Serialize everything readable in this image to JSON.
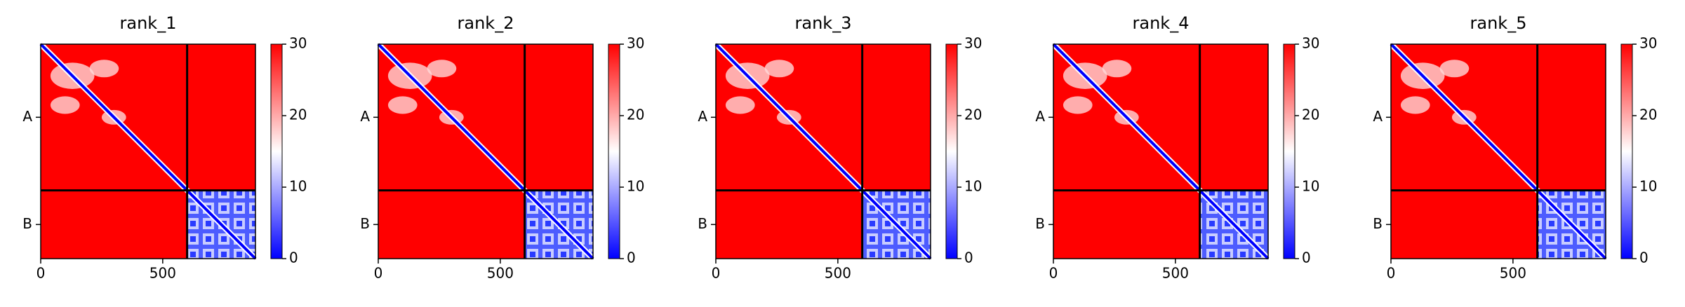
{
  "chart_data": [
    {
      "type": "heatmap",
      "title": "rank_1",
      "xlim": [
        0,
        880
      ],
      "xticks": [
        0,
        500
      ],
      "ylim": [
        0,
        880
      ],
      "y_categories": [
        "A",
        "B"
      ],
      "chain_breaks": [
        600
      ],
      "colormap": "bwr",
      "clim": [
        0,
        30
      ],
      "cticks": [
        0,
        10,
        20,
        30
      ]
    },
    {
      "type": "heatmap",
      "title": "rank_2",
      "xlim": [
        0,
        880
      ],
      "xticks": [
        0,
        500
      ],
      "ylim": [
        0,
        880
      ],
      "y_categories": [
        "A",
        "B"
      ],
      "chain_breaks": [
        600
      ],
      "colormap": "bwr",
      "clim": [
        0,
        30
      ],
      "cticks": [
        0,
        10,
        20,
        30
      ]
    },
    {
      "type": "heatmap",
      "title": "rank_3",
      "xlim": [
        0,
        880
      ],
      "xticks": [
        0,
        500
      ],
      "ylim": [
        0,
        880
      ],
      "y_categories": [
        "A",
        "B"
      ],
      "chain_breaks": [
        600
      ],
      "colormap": "bwr",
      "clim": [
        0,
        30
      ],
      "cticks": [
        0,
        10,
        20,
        30
      ]
    },
    {
      "type": "heatmap",
      "title": "rank_4",
      "xlim": [
        0,
        880
      ],
      "xticks": [
        0,
        500
      ],
      "ylim": [
        0,
        880
      ],
      "y_categories": [
        "A",
        "B"
      ],
      "chain_breaks": [
        600
      ],
      "colormap": "bwr",
      "clim": [
        0,
        30
      ],
      "cticks": [
        0,
        10,
        20,
        30
      ]
    },
    {
      "type": "heatmap",
      "title": "rank_5",
      "xlim": [
        0,
        880
      ],
      "xticks": [
        0,
        500
      ],
      "ylim": [
        0,
        880
      ],
      "y_categories": [
        "A",
        "B"
      ],
      "chain_breaks": [
        600
      ],
      "colormap": "bwr",
      "clim": [
        0,
        30
      ],
      "cticks": [
        0,
        10,
        20,
        30
      ]
    }
  ]
}
